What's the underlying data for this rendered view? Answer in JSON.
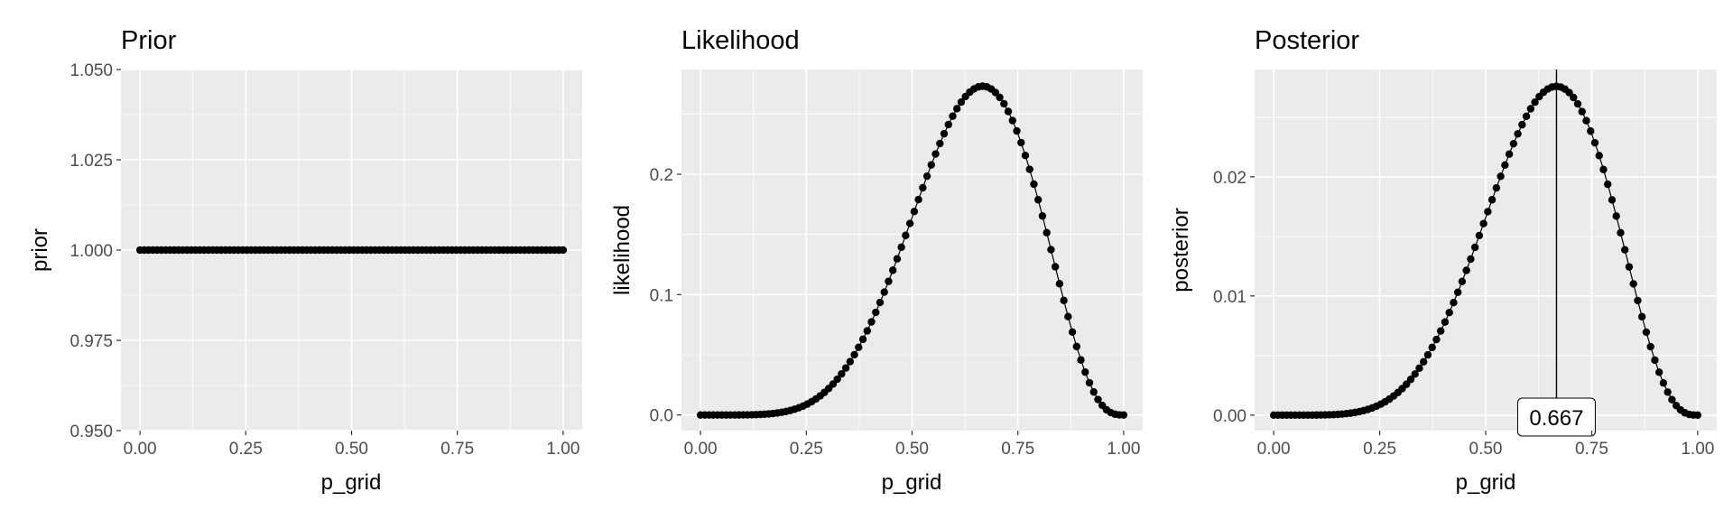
{
  "chart_data": [
    {
      "type": "line",
      "title": "Prior",
      "xlabel": "p_grid",
      "ylabel": "prior",
      "xlim": [
        0,
        1
      ],
      "ylim": [
        0.95,
        1.05
      ],
      "xticks": [
        "0.00",
        "0.25",
        "0.50",
        "0.75",
        "1.00"
      ],
      "yticks": [
        "0.950",
        "0.975",
        "1.000",
        "1.025",
        "1.050"
      ],
      "x": {
        "from": 0,
        "to": 1,
        "count": 100
      },
      "series": [
        {
          "values_formula": "prior = 1 for all p_grid"
        }
      ],
      "grid": true,
      "markers": true
    },
    {
      "type": "line",
      "title": "Likelihood",
      "xlabel": "p_grid",
      "ylabel": "likelihood",
      "xlim": [
        0,
        1
      ],
      "ylim": [
        -0.013,
        0.287
      ],
      "xticks": [
        "0.00",
        "0.25",
        "0.50",
        "0.75",
        "1.00"
      ],
      "yticks": [
        "0.0",
        "0.1",
        "0.2"
      ],
      "x": {
        "from": 0,
        "to": 1,
        "count": 100
      },
      "series": [
        {
          "values_formula": "likelihood = binomial(6 successes in 9 trials, p_grid)",
          "peak": 0.273,
          "peak_at": 0.667
        }
      ],
      "grid": true,
      "markers": true
    },
    {
      "type": "line",
      "title": "Posterior",
      "xlabel": "p_grid",
      "ylabel": "posterior",
      "xlim": [
        0,
        1
      ],
      "ylim": [
        -0.0013,
        0.029
      ],
      "xticks": [
        "0.00",
        "0.25",
        "0.50",
        "0.75",
        "1.00"
      ],
      "yticks": [
        "0.00",
        "0.01",
        "0.02"
      ],
      "x": {
        "from": 0,
        "to": 1,
        "count": 100
      },
      "series": [
        {
          "values_formula": "posterior = normalized(prior x likelihood)",
          "peak": 0.0276,
          "peak_at": 0.667
        }
      ],
      "annotations": [
        {
          "type": "vline",
          "x": 0.667,
          "label": "0.667"
        }
      ],
      "grid": true,
      "markers": true
    }
  ]
}
